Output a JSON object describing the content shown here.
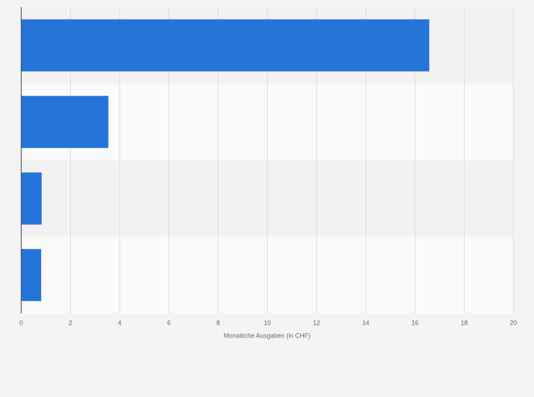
{
  "chart_data": {
    "type": "bar",
    "orientation": "horizontal",
    "categories": [
      null,
      null,
      null,
      null
    ],
    "values": [
      16.58,
      3.54,
      0.83,
      0.81
    ],
    "color": "#2574d9",
    "x_label": "Monatliche Ausgaben (in CHF)",
    "xlim": [
      0,
      20
    ],
    "xticks": [
      0,
      2,
      4,
      6,
      8,
      10,
      12,
      14,
      16,
      18,
      20
    ],
    "grid": true
  }
}
